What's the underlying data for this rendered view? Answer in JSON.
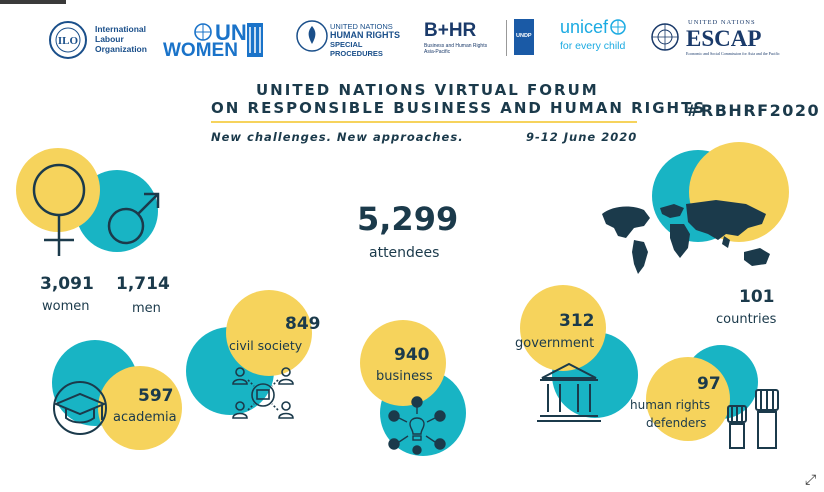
{
  "logos": {
    "ilo": {
      "abbr": "ILO",
      "text": "International Labour Organization"
    },
    "unwomen": {
      "line1": "UN",
      "line2": "WOMEN"
    },
    "ohchr": {
      "line1": "UNITED NATIONS",
      "line2": "HUMAN RIGHTS",
      "line3": "SPECIAL PROCEDURES"
    },
    "bhr": {
      "mark": "B+HR",
      "sub": "Business and Human Rights Asia-Pacific"
    },
    "undp": {
      "text": "UNDP"
    },
    "unicef": {
      "name": "unicef",
      "tagline": "for every child"
    },
    "escap": {
      "top": "UNITED NATIONS",
      "name": "ESCAP",
      "sub": "Economic and Social Commission for Asia and the Pacific"
    }
  },
  "header": {
    "title_line1": "UNITED NATIONS VIRTUAL FORUM",
    "title_line2": "ON RESPONSIBLE BUSINESS AND HUMAN RIGHTS",
    "hashtag": "#RBHRF2020",
    "tagline": "New challenges. New approaches.",
    "dates": "9-12 June 2020"
  },
  "stats": {
    "attendees": {
      "value": "5,299",
      "label": "attendees"
    },
    "women": {
      "value": "3,091",
      "label": "women"
    },
    "men": {
      "value": "1,714",
      "label": "men"
    },
    "countries": {
      "value": "101",
      "label": "countries"
    },
    "academia": {
      "value": "597",
      "label": "academia"
    },
    "civil_society": {
      "value": "849",
      "label": "civil society"
    },
    "business": {
      "value": "940",
      "label": "business"
    },
    "government": {
      "value": "312",
      "label": "government"
    },
    "hr_defenders": {
      "value": "97",
      "label_line1": "human rights",
      "label_line2": "defenders"
    }
  },
  "colors": {
    "teal": "#18b4c4",
    "yellow": "#f6d35c",
    "navy": "#1b3a4b"
  },
  "icons": [
    "female-symbol-icon",
    "male-symbol-icon",
    "world-map-icon",
    "graduation-cap-icon",
    "network-people-icon",
    "business-ideas-icon",
    "government-building-icon",
    "raised-fists-icon",
    "expand-icon"
  ]
}
